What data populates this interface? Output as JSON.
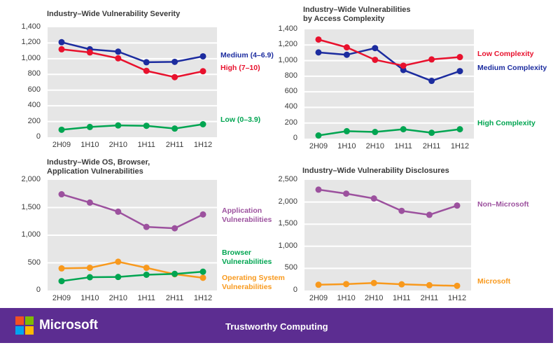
{
  "footer": {
    "brand": "Microsoft",
    "title": "Trustworthy Computing",
    "bar_color": "#5C2D91",
    "logo_colors": {
      "tl": "#F25022",
      "tr": "#7FBA00",
      "bl": "#00A4EF",
      "br": "#FFB900"
    }
  },
  "colors": {
    "plot_bg": "#E6E6E6",
    "gridline": "#FFFFFF",
    "text": "#3A3A3A"
  },
  "chart_data": [
    {
      "type": "line",
      "title_lines": [
        "Industry–Wide Vulnerability Severity"
      ],
      "categories": [
        "2H09",
        "1H10",
        "2H10",
        "1H11",
        "2H11",
        "1H12"
      ],
      "ylim": [
        0,
        1400
      ],
      "ytick_step": 200,
      "grid": true,
      "legend_position": "right",
      "series": [
        {
          "name": "Medium (4–6.9)",
          "color": "#1C2C9F",
          "values": [
            1210,
            1120,
            1090,
            955,
            960,
            1030
          ]
        },
        {
          "name": "High (7–10)",
          "color": "#E8112D",
          "values": [
            1120,
            1080,
            1005,
            845,
            765,
            840
          ]
        },
        {
          "name": "Low (0–3.9)",
          "color": "#00A551",
          "values": [
            95,
            130,
            150,
            145,
            110,
            165
          ]
        }
      ]
    },
    {
      "type": "line",
      "title_lines": [
        "Industry–Wide Vulnerabilities",
        "by Access Complexity"
      ],
      "categories": [
        "2H09",
        "1H10",
        "2H10",
        "1H11",
        "2H11",
        "1H12"
      ],
      "ylim": [
        0,
        1400
      ],
      "ytick_step": 200,
      "grid": true,
      "legend_position": "right",
      "series": [
        {
          "name": "Medium Complexity",
          "color": "#1C2C9F",
          "values": [
            1105,
            1075,
            1160,
            880,
            740,
            865
          ]
        },
        {
          "name": "Low Complexity",
          "color": "#E8112D",
          "values": [
            1270,
            1170,
            1010,
            935,
            1015,
            1045
          ]
        },
        {
          "name": "High Complexity",
          "color": "#00A551",
          "values": [
            40,
            95,
            85,
            120,
            75,
            120
          ]
        }
      ]
    },
    {
      "type": "line",
      "title_lines": [
        "Industry–Wide OS, Browser,",
        "Application Vulnerabilities"
      ],
      "categories": [
        "2H09",
        "1H10",
        "2H10",
        "1H11",
        "2H11",
        "1H12"
      ],
      "ylim": [
        0,
        2000
      ],
      "ytick_step": 500,
      "grid": true,
      "legend_position": "right",
      "series": [
        {
          "name": "Application\nVulnerabilities",
          "color": "#9C519E",
          "values": [
            1740,
            1590,
            1425,
            1150,
            1125,
            1375
          ]
        },
        {
          "name": "Operating System\nVulnerabilities",
          "color": "#F8991D",
          "values": [
            400,
            410,
            520,
            410,
            295,
            230
          ]
        },
        {
          "name": "Browser Vulnerabilities",
          "color": "#00A551",
          "values": [
            170,
            240,
            245,
            285,
            300,
            340
          ]
        }
      ]
    },
    {
      "type": "line",
      "title_lines": [
        "Industry–Wide Vulnerability Disclosures"
      ],
      "categories": [
        "2H09",
        "1H10",
        "2H10",
        "1H11",
        "2H11",
        "1H12"
      ],
      "ylim": [
        0,
        2500
      ],
      "ytick_step": 500,
      "grid": true,
      "legend_position": "right",
      "series": [
        {
          "name": "Non–Microsoft",
          "color": "#9C519E",
          "values": [
            2280,
            2190,
            2080,
            1800,
            1710,
            1920
          ]
        },
        {
          "name": "Microsoft",
          "color": "#F8991D",
          "values": [
            130,
            145,
            170,
            140,
            120,
            105
          ]
        }
      ]
    }
  ]
}
